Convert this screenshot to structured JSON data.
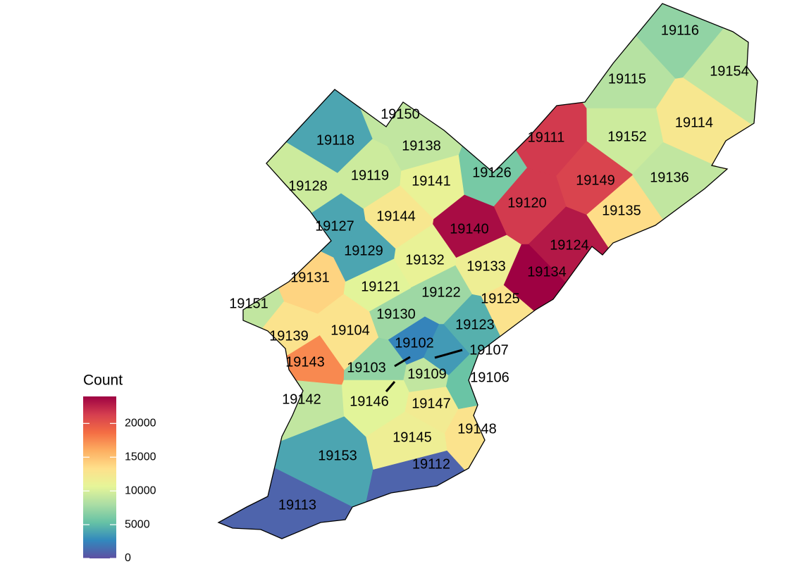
{
  "legend": {
    "title": "Count",
    "lim": [
      0,
      24000
    ],
    "ticks": [
      0,
      5000,
      10000,
      15000,
      20000
    ],
    "colors": [
      "#5E4FA2",
      "#3288BD",
      "#66C2A5",
      "#ABDDA4",
      "#E6F598",
      "#FEE08B",
      "#FDAE61",
      "#F46D43",
      "#D53E4F",
      "#9E0142"
    ]
  },
  "regions": [
    {
      "zip": "19116",
      "value": 7000
    },
    {
      "zip": "19154",
      "value": 9000
    },
    {
      "zip": "19115",
      "value": 8500
    },
    {
      "zip": "19114",
      "value": 12500
    },
    {
      "zip": "19152",
      "value": 9500
    },
    {
      "zip": "19111",
      "value": 21500
    },
    {
      "zip": "19136",
      "value": 9000
    },
    {
      "zip": "19149",
      "value": 21000
    },
    {
      "zip": "19126",
      "value": 6000
    },
    {
      "zip": "19120",
      "value": 21500
    },
    {
      "zip": "19135",
      "value": 13500
    },
    {
      "zip": "19140",
      "value": 23500
    },
    {
      "zip": "19124",
      "value": 23000
    },
    {
      "zip": "19134",
      "value": 24000
    },
    {
      "zip": "19133",
      "value": 11500
    },
    {
      "zip": "19132",
      "value": 11000
    },
    {
      "zip": "19125",
      "value": 13000
    },
    {
      "zip": "19150",
      "value": 9000
    },
    {
      "zip": "19138",
      "value": 9000
    },
    {
      "zip": "19118",
      "value": 4000
    },
    {
      "zip": "19119",
      "value": 9500
    },
    {
      "zip": "19141",
      "value": 11000
    },
    {
      "zip": "19128",
      "value": 9500
    },
    {
      "zip": "19144",
      "value": 12500
    },
    {
      "zip": "19127",
      "value": 4000
    },
    {
      "zip": "19129",
      "value": 4000
    },
    {
      "zip": "19131",
      "value": 14000
    },
    {
      "zip": "19121",
      "value": 10500
    },
    {
      "zip": "19122",
      "value": 7500
    },
    {
      "zip": "19151",
      "value": 9000
    },
    {
      "zip": "19130",
      "value": 7500
    },
    {
      "zip": "19123",
      "value": 4500
    },
    {
      "zip": "19139",
      "value": 13000
    },
    {
      "zip": "19104",
      "value": 13000
    },
    {
      "zip": "19102",
      "value": 2500
    },
    {
      "zip": "19107",
      "value": 3500
    },
    {
      "zip": "19143",
      "value": 17500
    },
    {
      "zip": "19103",
      "value": 7000
    },
    {
      "zip": "19109",
      "value": 9000
    },
    {
      "zip": "19106",
      "value": 5500
    },
    {
      "zip": "19142",
      "value": 9000
    },
    {
      "zip": "19146",
      "value": 10500
    },
    {
      "zip": "19147",
      "value": 12000
    },
    {
      "zip": "19148",
      "value": 13000
    },
    {
      "zip": "19145",
      "value": 11500
    },
    {
      "zip": "19153",
      "value": 4000
    },
    {
      "zip": "19112",
      "value": 1000
    },
    {
      "zip": "19113",
      "value": 1000
    }
  ]
}
